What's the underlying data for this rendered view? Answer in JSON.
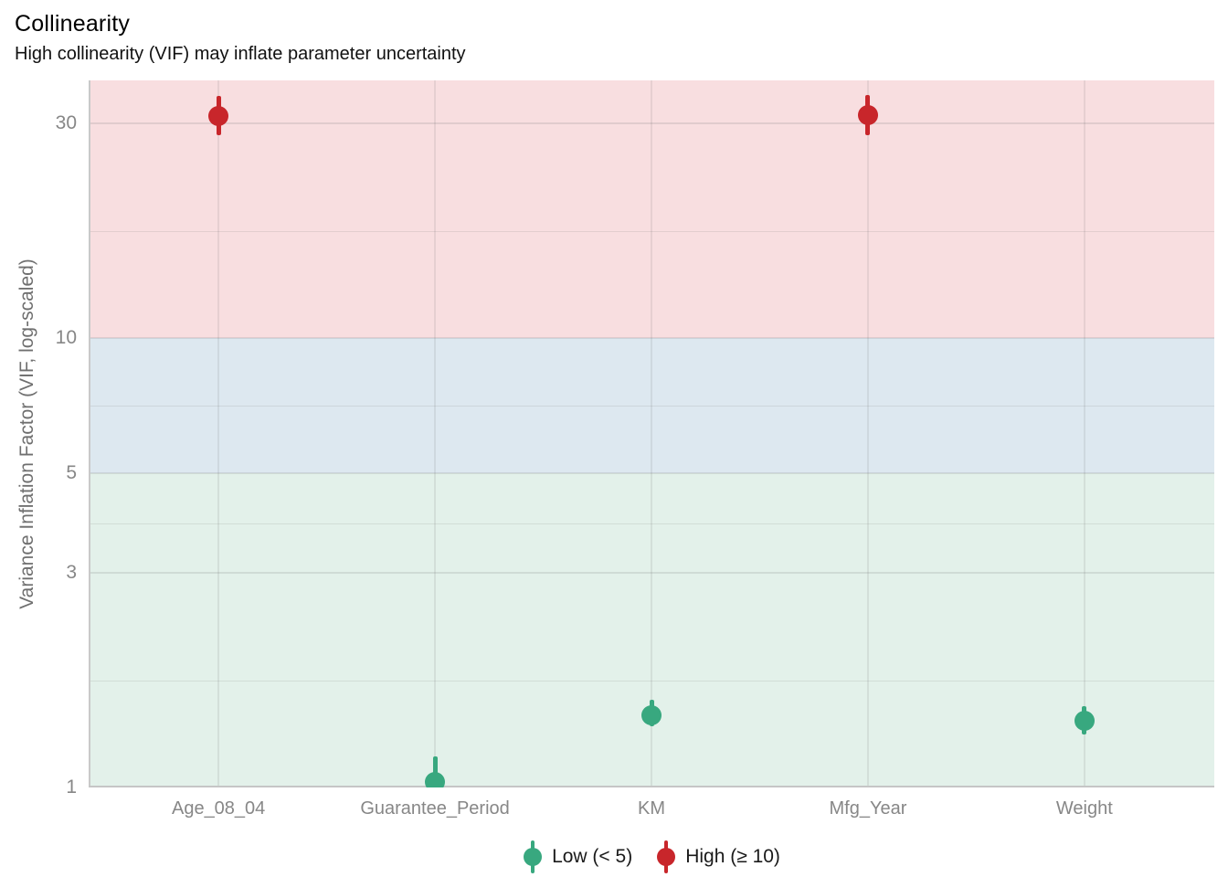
{
  "chart_data": {
    "type": "pointrange",
    "title": "Collinearity",
    "subtitle": "High collinearity (VIF) may inflate parameter uncertainty",
    "xlabel": "",
    "ylabel": "Variance Inflation Factor (VIF, log-scaled)",
    "y_scale": "log10",
    "ylim": [
      1,
      37.4
    ],
    "y_ticks": [
      30,
      10,
      5,
      3,
      1
    ],
    "y_minor_gridlines": [
      17.321,
      7.071,
      3.873,
      1.732
    ],
    "grid": true,
    "categories": [
      "Age_08_04",
      "Guarantee_Period",
      "KM",
      "Mfg_Year",
      "Weight"
    ],
    "points": [
      {
        "category": "Age_08_04",
        "vif": 31.1,
        "ci_low": 28.2,
        "ci_high": 34.6,
        "group": "high"
      },
      {
        "category": "Guarantee_Period",
        "vif": 1.03,
        "ci_low": 1.0,
        "ci_high": 1.17,
        "group": "low"
      },
      {
        "category": "KM",
        "vif": 1.45,
        "ci_low": 1.37,
        "ci_high": 1.57,
        "group": "low"
      },
      {
        "category": "Mfg_Year",
        "vif": 31.3,
        "ci_low": 28.3,
        "ci_high": 34.7,
        "group": "high"
      },
      {
        "category": "Weight",
        "vif": 1.41,
        "ci_low": 1.31,
        "ci_high": 1.52,
        "group": "low"
      }
    ],
    "bands": [
      {
        "name": "low-band",
        "from": 1,
        "to": 5,
        "color": "#e3f1ea"
      },
      {
        "name": "mid-band",
        "from": 5,
        "to": 10,
        "color": "#dde8f0"
      },
      {
        "name": "high-band",
        "from": 10,
        "to": 37.4,
        "color": "#f8dee0"
      }
    ],
    "colors": {
      "low": "#38a87f",
      "high": "#c8262b"
    },
    "legend": {
      "position": "bottom",
      "items": [
        {
          "label": "Low (< 5)",
          "group": "low",
          "color": "#38a87f"
        },
        {
          "label": "High (≥ 10)",
          "group": "high",
          "color": "#c8262b"
        }
      ]
    }
  }
}
